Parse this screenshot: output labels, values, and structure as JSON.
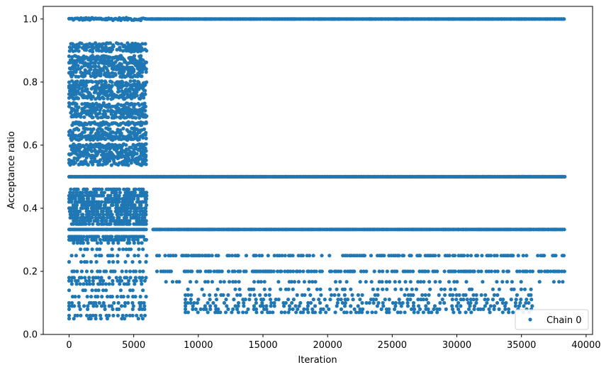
{
  "chart_data": {
    "type": "scatter",
    "title": "",
    "xlabel": "Iteration",
    "ylabel": "Acceptance ratio",
    "xlim": [
      -2000,
      40500
    ],
    "ylim": [
      0.0,
      1.04
    ],
    "xticks": [
      0,
      5000,
      10000,
      15000,
      20000,
      25000,
      30000,
      35000,
      40000
    ],
    "yticks": [
      0.0,
      0.2,
      0.4,
      0.6,
      0.8,
      1.0
    ],
    "grid": false,
    "legend_position": "lower-right",
    "marker": "circle",
    "series": [
      {
        "name": "Chain 0",
        "color": "#1f77b4",
        "x_range": [
          0,
          38400
        ],
        "phases": [
          {
            "x_range": [
              0,
              6000
            ],
            "values": [
              1.0,
              0.92,
              0.91,
              0.9,
              0.88,
              0.87,
              0.86,
              0.85,
              0.84,
              0.83,
              0.82,
              0.8,
              0.79,
              0.78,
              0.77,
              0.76,
              0.75,
              0.73,
              0.72,
              0.71,
              0.7,
              0.69,
              0.67,
              0.667,
              0.65,
              0.64,
              0.63,
              0.62,
              0.6,
              0.59,
              0.58,
              0.57,
              0.56,
              0.55,
              0.54,
              0.5,
              0.46,
              0.45,
              0.44,
              0.43,
              0.42,
              0.41,
              0.4,
              0.39,
              0.38,
              0.37,
              0.36,
              0.35,
              0.333,
              0.31,
              0.3,
              0.29,
              0.27,
              0.25,
              0.23,
              0.2,
              0.18,
              0.17,
              0.16,
              0.14,
              0.12,
              0.1,
              0.09,
              0.08,
              0.06,
              0.05
            ]
          },
          {
            "x_range": [
              6000,
              38400
            ],
            "values": [
              1.0,
              0.5
            ]
          },
          {
            "x_range": [
              6500,
              38400
            ],
            "values": [
              0.333
            ]
          },
          {
            "x_range": [
              6800,
              38400
            ],
            "values": [
              0.25,
              0.2,
              0.167
            ]
          },
          {
            "x_range": [
              9000,
              36000
            ],
            "values": [
              0.143,
              0.125,
              0.111,
              0.1,
              0.09,
              0.08,
              0.07
            ]
          }
        ]
      }
    ]
  }
}
